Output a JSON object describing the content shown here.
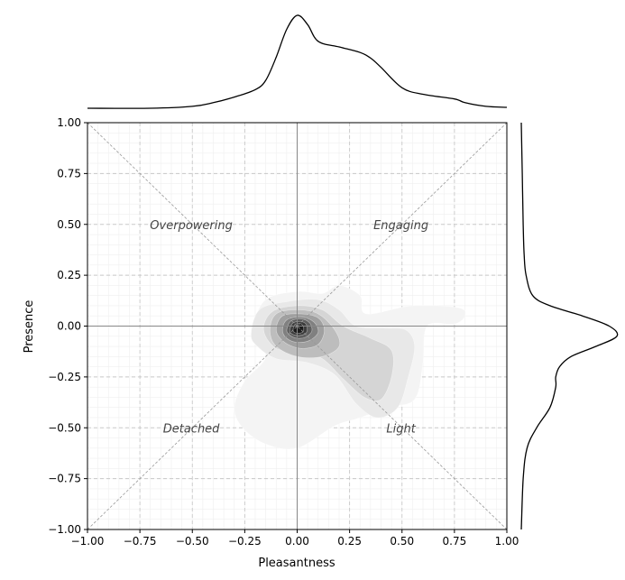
{
  "chart_data": {
    "type": "kde-joint-plot",
    "xlabel": "Pleasantness",
    "ylabel": "Presence",
    "xlim": [
      -1.0,
      1.0
    ],
    "ylim": [
      -1.0,
      1.0
    ],
    "x_ticks": [
      -1.0,
      -0.75,
      -0.5,
      -0.25,
      0.0,
      0.25,
      0.5,
      0.75,
      1.0
    ],
    "y_ticks": [
      -1.0,
      -0.75,
      -0.5,
      -0.25,
      0.0,
      0.25,
      0.5,
      0.75,
      1.0
    ],
    "x_tick_labels": [
      "−1.00",
      "−0.75",
      "−0.50",
      "−0.25",
      "0.00",
      "0.25",
      "0.50",
      "0.75",
      "1.00"
    ],
    "y_tick_labels": [
      "−1.00",
      "−0.75",
      "−0.50",
      "−0.25",
      "0.00",
      "0.25",
      "0.50",
      "0.75",
      "1.00"
    ],
    "grid": "dashed major, faint minor",
    "quadrant_labels": [
      {
        "text": "Engaging",
        "x": 0.5,
        "y": 0.5
      },
      {
        "text": "Overpowering",
        "x": -0.5,
        "y": 0.5
      },
      {
        "text": "Detached",
        "x": -0.5,
        "y": -0.5
      },
      {
        "text": "Light",
        "x": 0.5,
        "y": -0.5
      }
    ],
    "kde_levels": [
      {
        "level": 1,
        "color": "#f4f4f4",
        "points": [
          [
            -0.3,
            -0.4
          ],
          [
            -0.25,
            -0.27
          ],
          [
            -0.15,
            -0.15
          ],
          [
            -0.2,
            0.0
          ],
          [
            -0.15,
            0.13
          ],
          [
            0.0,
            0.17
          ],
          [
            0.12,
            0.16
          ],
          [
            0.2,
            0.2
          ],
          [
            0.3,
            0.15
          ],
          [
            0.33,
            0.06
          ],
          [
            0.55,
            0.1
          ],
          [
            0.77,
            0.09
          ],
          [
            0.8,
            0.05
          ],
          [
            0.75,
            0.01
          ],
          [
            0.62,
            0.0
          ],
          [
            0.6,
            -0.18
          ],
          [
            0.56,
            -0.36
          ],
          [
            0.43,
            -0.4
          ],
          [
            0.3,
            -0.45
          ],
          [
            0.18,
            -0.49
          ],
          [
            0.0,
            -0.6
          ],
          [
            -0.15,
            -0.58
          ],
          [
            -0.26,
            -0.5
          ]
        ]
      },
      {
        "level": 2,
        "color": "#e8e8e8",
        "points": [
          [
            -0.22,
            -0.04
          ],
          [
            -0.18,
            0.08
          ],
          [
            -0.05,
            0.12
          ],
          [
            0.1,
            0.13
          ],
          [
            0.2,
            0.08
          ],
          [
            0.28,
            0.0
          ],
          [
            0.42,
            -0.01
          ],
          [
            0.52,
            -0.02
          ],
          [
            0.56,
            -0.1
          ],
          [
            0.53,
            -0.25
          ],
          [
            0.48,
            -0.4
          ],
          [
            0.38,
            -0.45
          ],
          [
            0.28,
            -0.38
          ],
          [
            0.18,
            -0.24
          ],
          [
            0.05,
            -0.18
          ],
          [
            -0.1,
            -0.16
          ],
          [
            -0.19,
            -0.1
          ]
        ]
      },
      {
        "level": 3,
        "color": "#d5d5d5",
        "points": [
          [
            -0.16,
            -0.02
          ],
          [
            -0.12,
            0.07
          ],
          [
            0.0,
            0.1
          ],
          [
            0.12,
            0.08
          ],
          [
            0.22,
            0.0
          ],
          [
            0.35,
            -0.06
          ],
          [
            0.45,
            -0.12
          ],
          [
            0.45,
            -0.25
          ],
          [
            0.4,
            -0.36
          ],
          [
            0.32,
            -0.35
          ],
          [
            0.22,
            -0.26
          ],
          [
            0.12,
            -0.16
          ],
          [
            0.02,
            -0.13
          ],
          [
            -0.1,
            -0.11
          ]
        ]
      },
      {
        "level": 4,
        "color": "#bdbdbd",
        "points": [
          [
            -0.13,
            -0.02
          ],
          [
            -0.1,
            0.06
          ],
          [
            0.0,
            0.08
          ],
          [
            0.1,
            0.06
          ],
          [
            0.18,
            -0.02
          ],
          [
            0.2,
            -0.1
          ],
          [
            0.12,
            -0.15
          ],
          [
            0.0,
            -0.15
          ],
          [
            -0.1,
            -0.1
          ]
        ]
      },
      {
        "level": 5,
        "color": "#a0a0a0",
        "points": [
          [
            -0.1,
            -0.02
          ],
          [
            -0.07,
            0.05
          ],
          [
            0.02,
            0.06
          ],
          [
            0.1,
            0.04
          ],
          [
            0.13,
            -0.02
          ],
          [
            0.1,
            -0.09
          ],
          [
            0.02,
            -0.11
          ],
          [
            -0.06,
            -0.08
          ]
        ]
      },
      {
        "level": 6,
        "color": "#808080",
        "points": [
          [
            -0.07,
            -0.02
          ],
          [
            -0.05,
            0.03
          ],
          [
            0.02,
            0.045
          ],
          [
            0.08,
            0.02
          ],
          [
            0.1,
            -0.03
          ],
          [
            0.06,
            -0.07
          ],
          [
            0.0,
            -0.08
          ],
          [
            -0.05,
            -0.06
          ]
        ]
      },
      {
        "level": 7,
        "color": "#5f5f5f",
        "points": [
          [
            -0.05,
            -0.02
          ],
          [
            -0.03,
            0.025
          ],
          [
            0.02,
            0.035
          ],
          [
            0.06,
            0.015
          ],
          [
            0.07,
            -0.025
          ],
          [
            0.04,
            -0.055
          ],
          [
            0.0,
            -0.06
          ],
          [
            -0.035,
            -0.045
          ]
        ]
      },
      {
        "level": 8,
        "color": "#3c3c3c",
        "points": [
          [
            -0.035,
            -0.02
          ],
          [
            -0.02,
            0.015
          ],
          [
            0.02,
            0.022
          ],
          [
            0.045,
            0.005
          ],
          [
            0.045,
            -0.03
          ],
          [
            0.02,
            -0.045
          ],
          [
            -0.01,
            -0.045
          ],
          [
            -0.03,
            -0.035
          ]
        ]
      },
      {
        "level": 9,
        "color": "#1c1c1c",
        "points": [
          [
            -0.02,
            -0.02
          ],
          [
            -0.01,
            0.008
          ],
          [
            0.015,
            0.012
          ],
          [
            0.03,
            -0.005
          ],
          [
            0.028,
            -0.028
          ],
          [
            0.01,
            -0.035
          ],
          [
            -0.01,
            -0.033
          ]
        ]
      }
    ],
    "marginal_x_density": {
      "x": [
        -1.0,
        -0.7,
        -0.5,
        -0.4,
        -0.3,
        -0.2,
        -0.15,
        -0.1,
        -0.05,
        0.0,
        0.05,
        0.1,
        0.2,
        0.3,
        0.35,
        0.4,
        0.5,
        0.6,
        0.75,
        0.8,
        0.9,
        1.0
      ],
      "density": [
        0.0,
        0.0,
        0.02,
        0.06,
        0.12,
        0.2,
        0.3,
        0.55,
        0.85,
        1.0,
        0.9,
        0.72,
        0.66,
        0.6,
        0.54,
        0.44,
        0.22,
        0.15,
        0.1,
        0.06,
        0.02,
        0.01
      ]
    },
    "marginal_y_density": {
      "y": [
        -1.0,
        -0.75,
        -0.6,
        -0.5,
        -0.4,
        -0.3,
        -0.25,
        -0.2,
        -0.15,
        -0.1,
        -0.05,
        0.0,
        0.05,
        0.1,
        0.15,
        0.25,
        0.35,
        0.5,
        0.75,
        1.0
      ],
      "density": [
        0.0,
        0.02,
        0.06,
        0.16,
        0.3,
        0.36,
        0.36,
        0.4,
        0.52,
        0.78,
        1.0,
        0.92,
        0.64,
        0.3,
        0.12,
        0.05,
        0.03,
        0.02,
        0.01,
        0.0
      ]
    }
  }
}
